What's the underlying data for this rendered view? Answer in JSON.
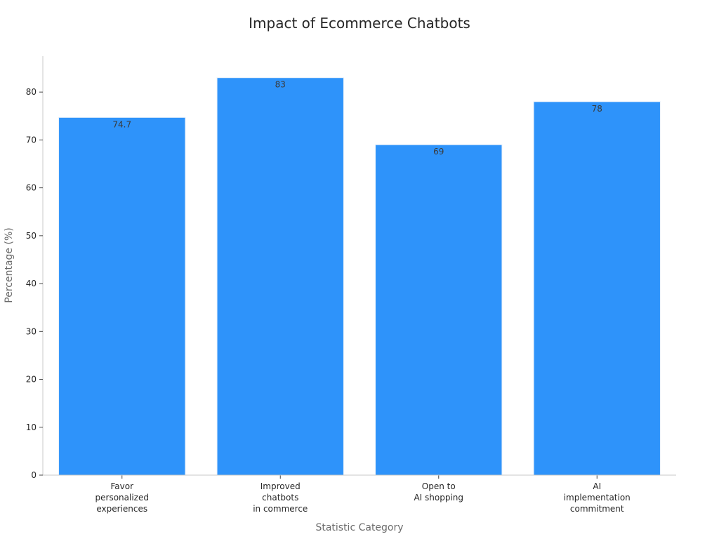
{
  "chart_data": {
    "type": "bar",
    "title": "Impact of Ecommerce Chatbots",
    "xlabel": "Statistic Category",
    "ylabel": "Percentage (%)",
    "categories": [
      [
        "Favor",
        "personalized",
        "experiences"
      ],
      [
        "Improved",
        "chatbots",
        "in commerce"
      ],
      [
        "Open to",
        "AI shopping"
      ],
      [
        "AI",
        "implementation",
        "commitment"
      ]
    ],
    "values": [
      74.7,
      83,
      69,
      78
    ],
    "value_labels": [
      "74.7",
      "83",
      "69",
      "78"
    ],
    "ylim": [
      0,
      87.5
    ],
    "yticks": [
      0,
      10,
      20,
      30,
      40,
      50,
      60,
      70,
      80
    ],
    "grid": false,
    "legend": "none",
    "colors": {
      "bar": "#2e93fa",
      "bar_edge": "#e8f1fb",
      "axis": "#c8c8c8",
      "text": "#262626"
    }
  }
}
